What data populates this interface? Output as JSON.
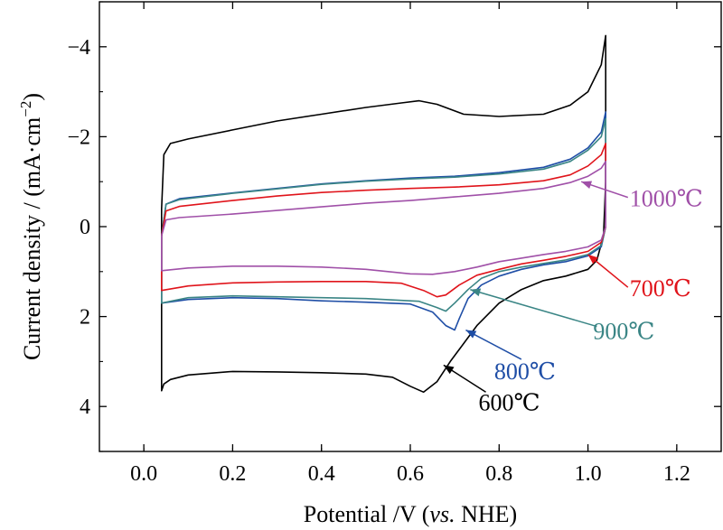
{
  "chart_data": {
    "type": "line",
    "xlabel": {
      "main": "Potential /V (",
      "italic": "vs.",
      "tail": " NHE)"
    },
    "ylabel": {
      "main": "Current density / (mA·cm",
      "sup": "−2",
      "tail": ")"
    },
    "xlim": [
      -0.1,
      1.3
    ],
    "ylim": [
      5,
      -5
    ],
    "y_inverted": true,
    "xticks": [
      0.0,
      0.2,
      0.4,
      0.6,
      0.8,
      1.0,
      1.2
    ],
    "xtick_labels": [
      "0.0",
      "0.2",
      "0.4",
      "0.6",
      "0.8",
      "1.0",
      "1.2"
    ],
    "yticks": [
      -4,
      -2,
      0,
      2,
      4
    ],
    "ytick_labels": [
      "−4",
      "−2",
      "0",
      "2",
      "4"
    ],
    "grid": false,
    "legend": "inline labels with arrows",
    "series": [
      {
        "name": "600℃",
        "color": "#000000",
        "forward": [
          [
            0.04,
            -0.4
          ],
          [
            0.045,
            -1.6
          ],
          [
            0.06,
            -1.85
          ],
          [
            0.1,
            -1.95
          ],
          [
            0.2,
            -2.15
          ],
          [
            0.3,
            -2.35
          ],
          [
            0.4,
            -2.5
          ],
          [
            0.5,
            -2.65
          ],
          [
            0.58,
            -2.75
          ],
          [
            0.62,
            -2.8
          ],
          [
            0.66,
            -2.72
          ],
          [
            0.72,
            -2.5
          ],
          [
            0.8,
            -2.45
          ],
          [
            0.9,
            -2.5
          ],
          [
            0.96,
            -2.7
          ],
          [
            1.0,
            -3.0
          ],
          [
            1.03,
            -3.6
          ],
          [
            1.04,
            -4.25
          ]
        ],
        "reverse": [
          [
            1.04,
            -4.25
          ],
          [
            1.04,
            -1.0
          ],
          [
            1.035,
            0.2
          ],
          [
            1.02,
            0.75
          ],
          [
            1.0,
            0.95
          ],
          [
            0.95,
            1.1
          ],
          [
            0.9,
            1.2
          ],
          [
            0.85,
            1.4
          ],
          [
            0.8,
            1.7
          ],
          [
            0.75,
            2.2
          ],
          [
            0.72,
            2.6
          ],
          [
            0.69,
            3.0
          ],
          [
            0.66,
            3.45
          ],
          [
            0.63,
            3.68
          ],
          [
            0.6,
            3.55
          ],
          [
            0.56,
            3.35
          ],
          [
            0.5,
            3.28
          ],
          [
            0.4,
            3.25
          ],
          [
            0.3,
            3.23
          ],
          [
            0.2,
            3.22
          ],
          [
            0.1,
            3.3
          ],
          [
            0.06,
            3.4
          ],
          [
            0.045,
            3.5
          ],
          [
            0.04,
            3.65
          ],
          [
            0.04,
            -0.4
          ]
        ]
      },
      {
        "name": "800℃",
        "color": "#1f4ea6",
        "forward": [
          [
            0.04,
            0.2
          ],
          [
            0.05,
            -0.5
          ],
          [
            0.08,
            -0.62
          ],
          [
            0.2,
            -0.75
          ],
          [
            0.3,
            -0.85
          ],
          [
            0.4,
            -0.95
          ],
          [
            0.5,
            -1.02
          ],
          [
            0.6,
            -1.08
          ],
          [
            0.7,
            -1.12
          ],
          [
            0.8,
            -1.2
          ],
          [
            0.9,
            -1.32
          ],
          [
            0.96,
            -1.5
          ],
          [
            1.0,
            -1.75
          ],
          [
            1.03,
            -2.1
          ],
          [
            1.04,
            -2.55
          ]
        ],
        "reverse": [
          [
            1.04,
            -2.55
          ],
          [
            1.04,
            0.0
          ],
          [
            1.03,
            0.45
          ],
          [
            1.0,
            0.65
          ],
          [
            0.95,
            0.78
          ],
          [
            0.9,
            0.85
          ],
          [
            0.85,
            0.95
          ],
          [
            0.8,
            1.1
          ],
          [
            0.76,
            1.3
          ],
          [
            0.73,
            1.6
          ],
          [
            0.71,
            2.05
          ],
          [
            0.7,
            2.3
          ],
          [
            0.68,
            2.2
          ],
          [
            0.65,
            1.9
          ],
          [
            0.6,
            1.72
          ],
          [
            0.5,
            1.68
          ],
          [
            0.4,
            1.65
          ],
          [
            0.3,
            1.6
          ],
          [
            0.2,
            1.58
          ],
          [
            0.1,
            1.62
          ],
          [
            0.04,
            1.7
          ],
          [
            0.04,
            0.2
          ]
        ]
      },
      {
        "name": "900℃",
        "color": "#3a8585",
        "forward": [
          [
            0.04,
            0.2
          ],
          [
            0.05,
            -0.5
          ],
          [
            0.08,
            -0.6
          ],
          [
            0.2,
            -0.74
          ],
          [
            0.3,
            -0.84
          ],
          [
            0.4,
            -0.94
          ],
          [
            0.5,
            -1.01
          ],
          [
            0.6,
            -1.06
          ],
          [
            0.7,
            -1.1
          ],
          [
            0.8,
            -1.17
          ],
          [
            0.9,
            -1.28
          ],
          [
            0.96,
            -1.45
          ],
          [
            1.0,
            -1.7
          ],
          [
            1.03,
            -2.0
          ],
          [
            1.04,
            -2.4
          ]
        ],
        "reverse": [
          [
            1.04,
            -2.4
          ],
          [
            1.04,
            0.0
          ],
          [
            1.03,
            0.42
          ],
          [
            1.0,
            0.62
          ],
          [
            0.95,
            0.74
          ],
          [
            0.9,
            0.82
          ],
          [
            0.85,
            0.9
          ],
          [
            0.8,
            1.0
          ],
          [
            0.76,
            1.15
          ],
          [
            0.73,
            1.4
          ],
          [
            0.7,
            1.7
          ],
          [
            0.68,
            1.88
          ],
          [
            0.66,
            1.8
          ],
          [
            0.62,
            1.66
          ],
          [
            0.5,
            1.6
          ],
          [
            0.4,
            1.58
          ],
          [
            0.3,
            1.56
          ],
          [
            0.2,
            1.54
          ],
          [
            0.1,
            1.58
          ],
          [
            0.04,
            1.7
          ],
          [
            0.04,
            0.2
          ]
        ]
      },
      {
        "name": "700℃",
        "color": "#e0141b",
        "forward": [
          [
            0.04,
            0.2
          ],
          [
            0.05,
            -0.35
          ],
          [
            0.08,
            -0.45
          ],
          [
            0.2,
            -0.58
          ],
          [
            0.3,
            -0.68
          ],
          [
            0.4,
            -0.76
          ],
          [
            0.5,
            -0.81
          ],
          [
            0.6,
            -0.85
          ],
          [
            0.7,
            -0.88
          ],
          [
            0.8,
            -0.93
          ],
          [
            0.9,
            -1.02
          ],
          [
            0.96,
            -1.15
          ],
          [
            1.0,
            -1.35
          ],
          [
            1.03,
            -1.6
          ],
          [
            1.04,
            -1.85
          ]
        ],
        "reverse": [
          [
            1.04,
            -1.85
          ],
          [
            1.04,
            0.0
          ],
          [
            1.03,
            0.35
          ],
          [
            1.0,
            0.55
          ],
          [
            0.95,
            0.66
          ],
          [
            0.9,
            0.75
          ],
          [
            0.85,
            0.83
          ],
          [
            0.8,
            0.95
          ],
          [
            0.75,
            1.08
          ],
          [
            0.71,
            1.3
          ],
          [
            0.68,
            1.52
          ],
          [
            0.66,
            1.56
          ],
          [
            0.63,
            1.42
          ],
          [
            0.58,
            1.26
          ],
          [
            0.5,
            1.22
          ],
          [
            0.4,
            1.22
          ],
          [
            0.3,
            1.23
          ],
          [
            0.2,
            1.25
          ],
          [
            0.1,
            1.32
          ],
          [
            0.04,
            1.42
          ],
          [
            0.04,
            0.2
          ]
        ]
      },
      {
        "name": "1000℃",
        "color": "#a050a8",
        "forward": [
          [
            0.04,
            0.2
          ],
          [
            0.05,
            -0.15
          ],
          [
            0.08,
            -0.2
          ],
          [
            0.2,
            -0.28
          ],
          [
            0.3,
            -0.36
          ],
          [
            0.4,
            -0.44
          ],
          [
            0.5,
            -0.52
          ],
          [
            0.6,
            -0.58
          ],
          [
            0.7,
            -0.66
          ],
          [
            0.8,
            -0.74
          ],
          [
            0.9,
            -0.85
          ],
          [
            0.96,
            -0.98
          ],
          [
            1.0,
            -1.12
          ],
          [
            1.03,
            -1.3
          ],
          [
            1.04,
            -1.45
          ]
        ],
        "reverse": [
          [
            1.04,
            -1.45
          ],
          [
            1.04,
            0.0
          ],
          [
            1.03,
            0.3
          ],
          [
            1.0,
            0.45
          ],
          [
            0.95,
            0.55
          ],
          [
            0.9,
            0.62
          ],
          [
            0.85,
            0.7
          ],
          [
            0.8,
            0.78
          ],
          [
            0.75,
            0.9
          ],
          [
            0.7,
            1.0
          ],
          [
            0.65,
            1.06
          ],
          [
            0.6,
            1.05
          ],
          [
            0.55,
            1.0
          ],
          [
            0.5,
            0.95
          ],
          [
            0.4,
            0.9
          ],
          [
            0.3,
            0.88
          ],
          [
            0.2,
            0.88
          ],
          [
            0.1,
            0.92
          ],
          [
            0.04,
            0.98
          ],
          [
            0.04,
            0.2
          ]
        ]
      }
    ],
    "annotations": [
      {
        "text": "1000℃",
        "color": "#a050a8",
        "arrow_to": [
          0.985,
          -1.0
        ],
        "arrow_from": [
          1.09,
          -0.65
        ]
      },
      {
        "text": "700℃",
        "color": "#e0141b",
        "arrow_to": [
          1.0,
          0.62
        ],
        "arrow_from": [
          1.09,
          1.35
        ]
      },
      {
        "text": "900℃",
        "color": "#3a8585",
        "arrow_to": [
          0.735,
          1.4
        ],
        "arrow_from": [
          1.02,
          2.22
        ]
      },
      {
        "text": "800℃",
        "color": "#1f4ea6",
        "arrow_to": [
          0.725,
          2.3
        ],
        "arrow_from": [
          0.85,
          2.95
        ]
      },
      {
        "text": "600℃",
        "color": "#000000",
        "arrow_to": [
          0.675,
          3.08
        ],
        "arrow_from": [
          0.77,
          3.68
        ]
      }
    ]
  }
}
